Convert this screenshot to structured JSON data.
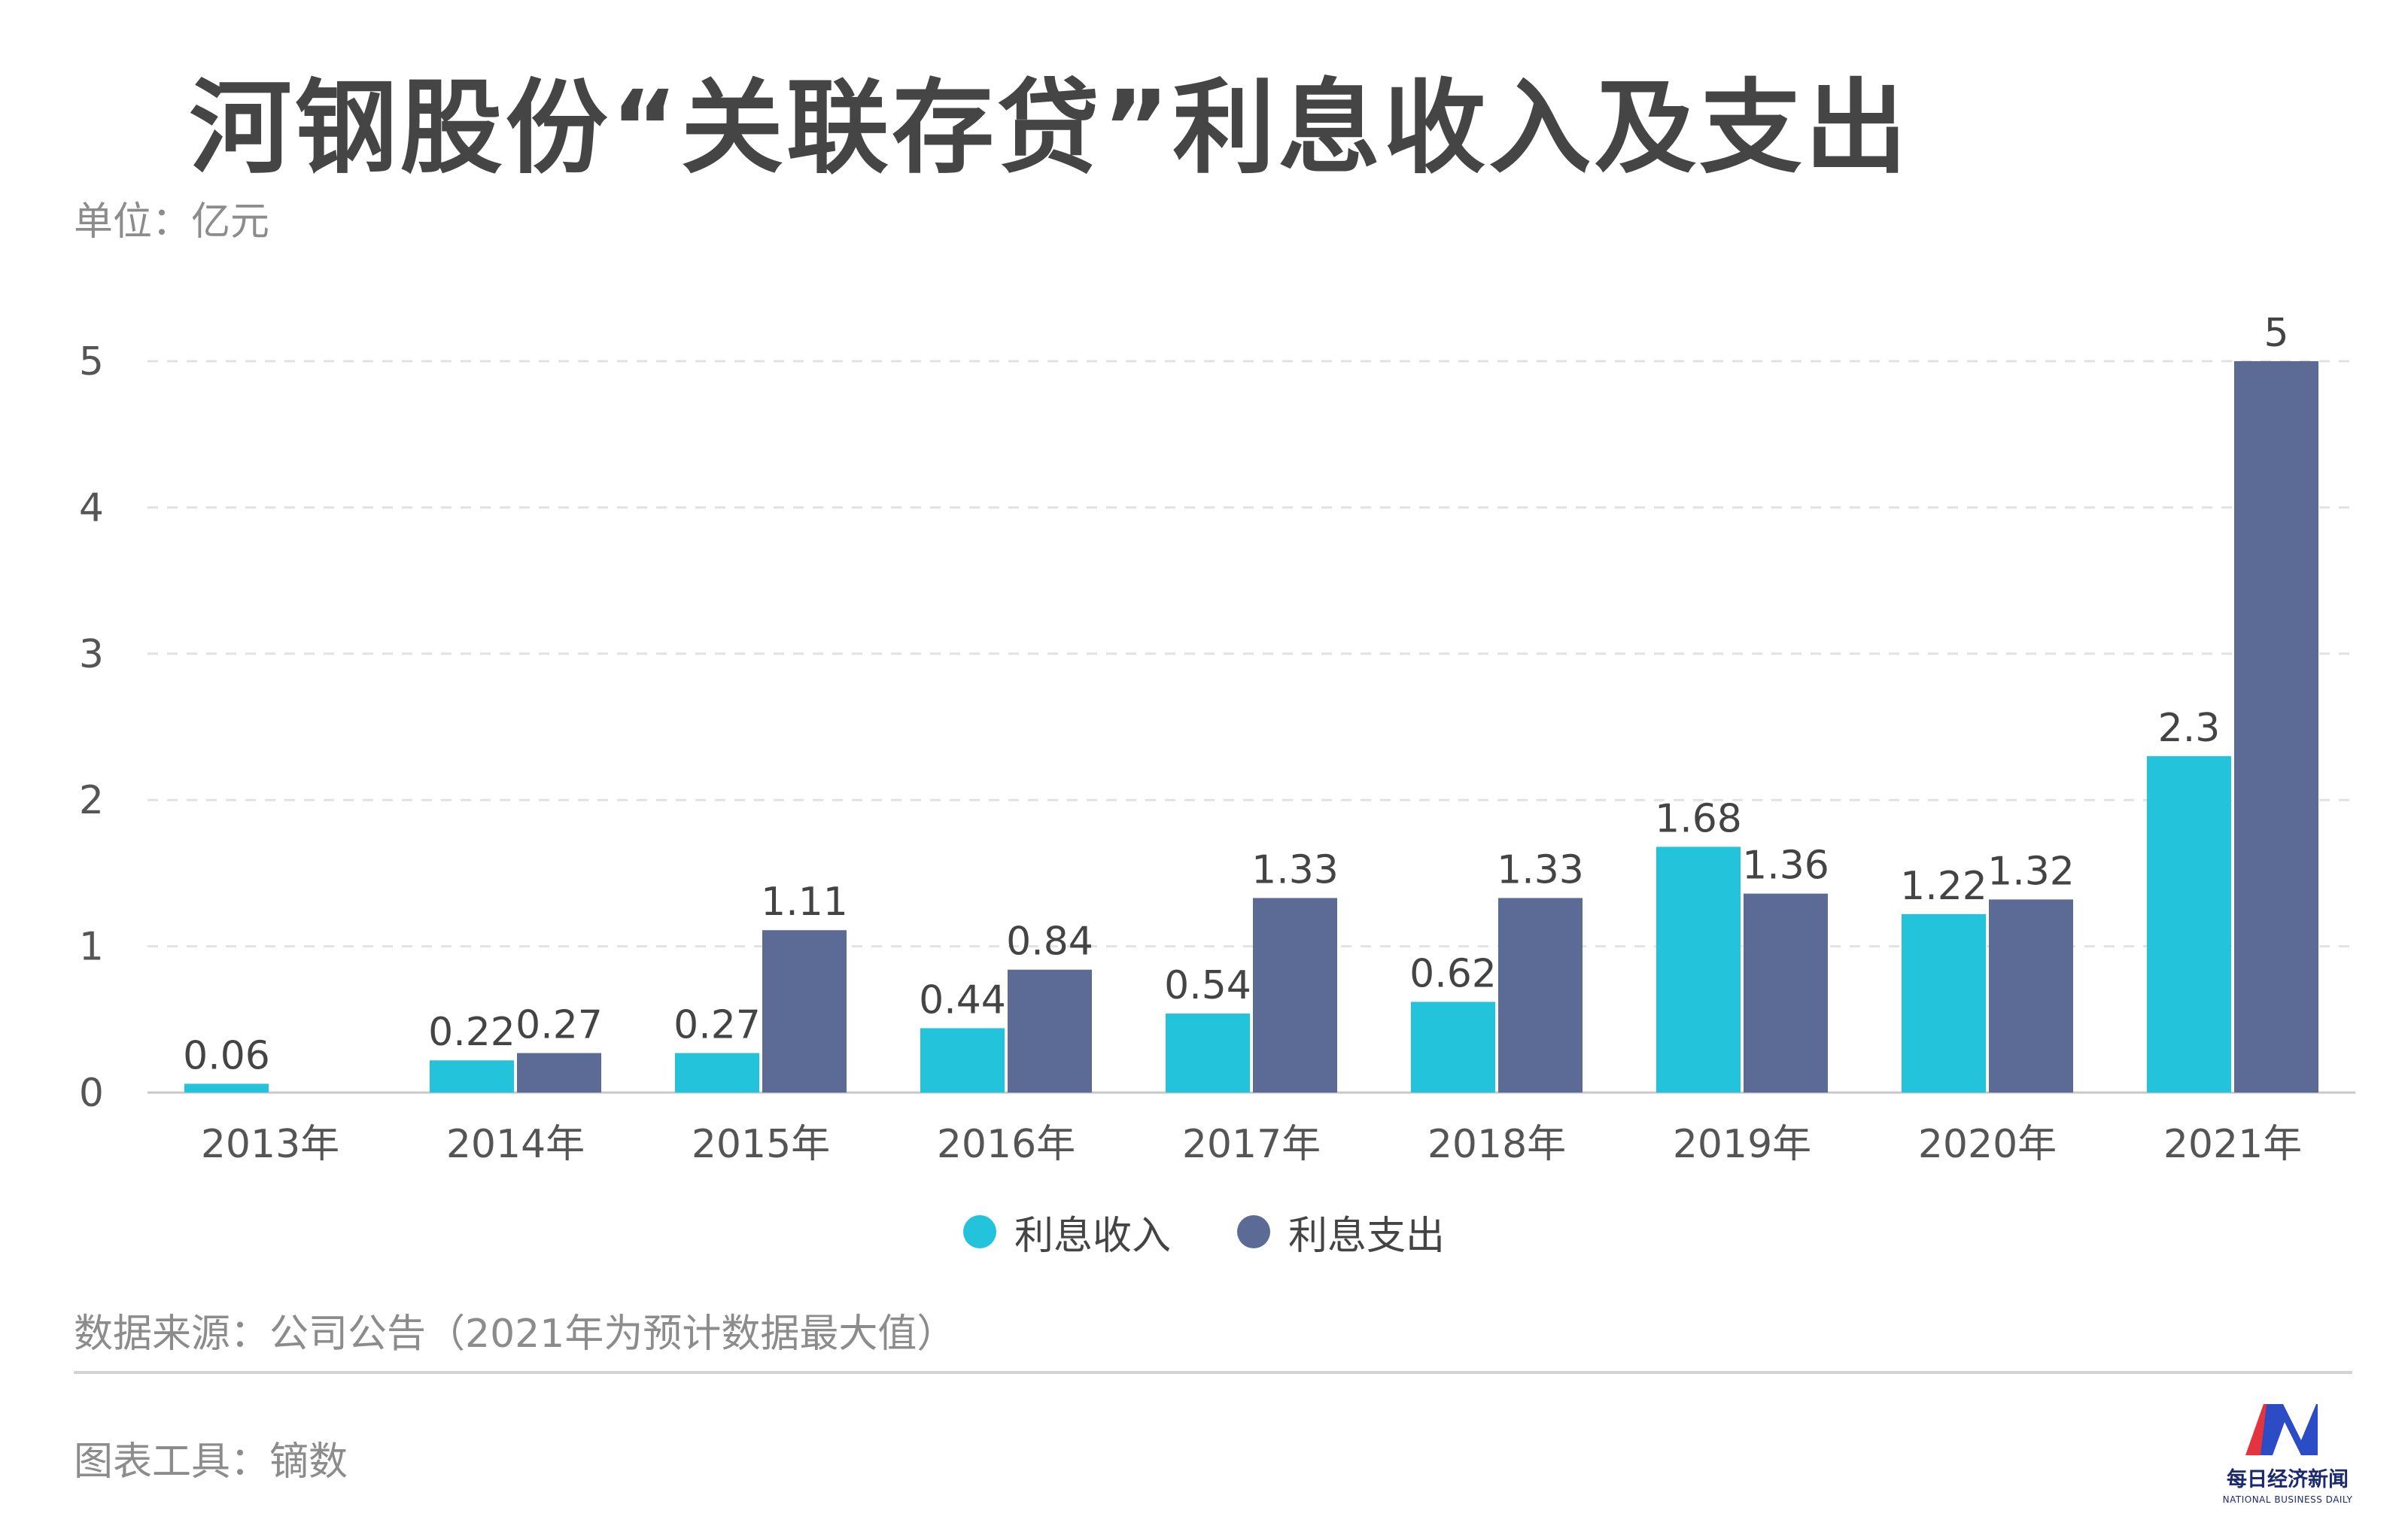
{
  "header": {
    "title": "河钢股份“关联存贷”利息收入及支出",
    "unit": "单位：亿元"
  },
  "footer": {
    "source": "数据来源：公司公告（2021年为预计数据最大值）",
    "tool": "图表工具：镝数"
  },
  "logo": {
    "name_cn": "每日经济新闻",
    "name_en": "NATIONAL BUSINESS DAILY",
    "colors": [
      "#e3343f",
      "#2b4cc4"
    ]
  },
  "chart_data": {
    "type": "bar",
    "categories": [
      "2013年",
      "2014年",
      "2015年",
      "2016年",
      "2017年",
      "2018年",
      "2019年",
      "2020年",
      "2021年"
    ],
    "series": [
      {
        "name": "利息收入",
        "color": "#22c3db",
        "values": [
          0.06,
          0.22,
          0.27,
          0.44,
          0.54,
          0.62,
          1.68,
          1.22,
          2.3
        ]
      },
      {
        "name": "利息支出",
        "color": "#5c6b96",
        "values": [
          null,
          0.27,
          1.11,
          0.84,
          1.33,
          1.33,
          1.36,
          1.32,
          5
        ]
      }
    ],
    "y_ticks": [
      0,
      1,
      2,
      3,
      4,
      5
    ],
    "ylim": [
      0,
      5
    ],
    "grid": true,
    "legend_position": "bottom-center"
  }
}
